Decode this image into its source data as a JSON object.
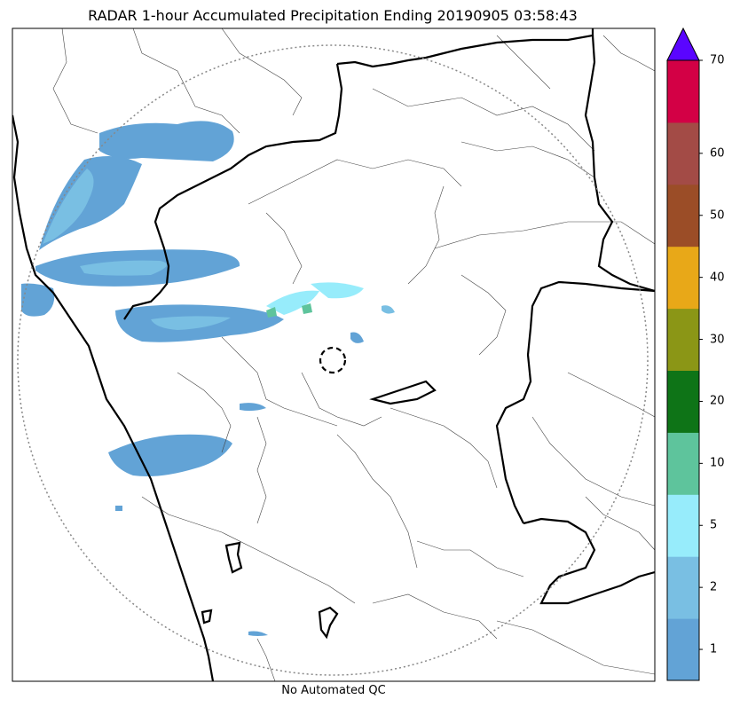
{
  "title": "RADAR 1-hour Accumulated Precipitation Ending 20190905 03:58:43",
  "footer": "No Automated QC",
  "colorbar": {
    "bins": [
      {
        "color": "#62a3d6"
      },
      {
        "color": "#79bfe3"
      },
      {
        "color": "#97ecfb"
      },
      {
        "color": "#5ec49c"
      },
      {
        "color": "#0e7417"
      },
      {
        "color": "#8b9616"
      },
      {
        "color": "#e8a818"
      },
      {
        "color": "#9b4d27"
      },
      {
        "color": "#a34b46"
      },
      {
        "color": "#d30045"
      }
    ],
    "over_color": "#5a05ff",
    "ticks": [
      "1",
      "2",
      "5",
      "10",
      "20",
      "30",
      "40",
      "50",
      "60",
      "70"
    ]
  },
  "legend_colors": {
    "coast": "#000000",
    "district_boundary": "#444444",
    "range_ring": "#888888"
  }
}
